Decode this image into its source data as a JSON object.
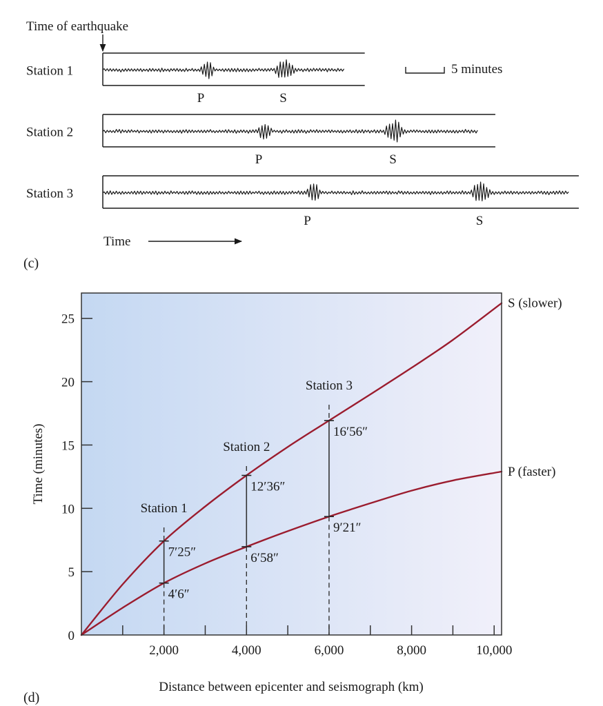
{
  "panel_c": {
    "panel_label": "(c)",
    "time_of_earthquake_label": "Time of earthquake",
    "time_axis_label": "Time",
    "scale_bar_label": "5 minutes",
    "scale_bar_minutes": 5,
    "stations": [
      {
        "name": "Station 1",
        "p_label": "P",
        "s_label": "S",
        "p_arrival_min": 12.5,
        "s_arrival_min": 22.1,
        "trace_end_min": 31.4,
        "record_length_min": 33.9
      },
      {
        "name": "Station 2",
        "p_label": "P",
        "s_label": "S",
        "p_arrival_min": 20.0,
        "s_arrival_min": 36.3,
        "trace_end_min": 48.6,
        "record_length_min": 50.8
      },
      {
        "name": "Station 3",
        "p_label": "P",
        "s_label": "S",
        "p_arrival_min": 26.3,
        "s_arrival_min": 47.5,
        "trace_end_min": 60.3,
        "record_length_min": 61.6
      }
    ]
  },
  "chart_data": {
    "type": "line",
    "panel_label": "(d)",
    "title": "",
    "xlabel": "Distance between epicenter and seismograph (km)",
    "ylabel": "Time (minutes)",
    "xlim": [
      0,
      10180
    ],
    "ylim": [
      0,
      27
    ],
    "x_ticks": [
      1000,
      2000,
      3000,
      4000,
      5000,
      6000,
      7000,
      8000,
      9000,
      10000
    ],
    "x_tick_labels": [
      {
        "value": 2000,
        "label": "2,000"
      },
      {
        "value": 4000,
        "label": "4,000"
      },
      {
        "value": 6000,
        "label": "6,000"
      },
      {
        "value": 8000,
        "label": "8,000"
      },
      {
        "value": 10000,
        "label": "10,000"
      }
    ],
    "y_ticks": [
      {
        "value": 0,
        "label": "0"
      },
      {
        "value": 5,
        "label": "5"
      },
      {
        "value": 10,
        "label": "10"
      },
      {
        "value": 15,
        "label": "15"
      },
      {
        "value": 20,
        "label": "20"
      },
      {
        "value": 25,
        "label": "25"
      }
    ],
    "grid": false,
    "series": [
      {
        "name": "S (slower)",
        "color": "#9b1c2e",
        "x": [
          0,
          1000,
          2000,
          3000,
          4000,
          5000,
          6000,
          7000,
          8000,
          9000,
          10180
        ],
        "y": [
          0,
          4.0,
          7.42,
          10.15,
          12.6,
          14.85,
          16.93,
          19.0,
          21.1,
          23.3,
          26.2
        ]
      },
      {
        "name": "P (faster)",
        "color": "#9b1c2e",
        "x": [
          0,
          1000,
          2000,
          3000,
          4000,
          5000,
          6000,
          7000,
          8000,
          9000,
          10180
        ],
        "y": [
          0,
          2.15,
          4.1,
          5.65,
          6.97,
          8.2,
          9.35,
          10.4,
          11.4,
          12.2,
          12.9
        ]
      }
    ],
    "stations": [
      {
        "name": "Station 1",
        "distance_km": 2000,
        "s_time": 7.42,
        "p_time": 4.1,
        "s_label": "7′25″",
        "p_label": "4′6″"
      },
      {
        "name": "Station 2",
        "distance_km": 4000,
        "s_time": 12.6,
        "p_time": 6.97,
        "s_label": "12′36″",
        "p_label": "6′58″"
      },
      {
        "name": "Station 3",
        "distance_km": 6000,
        "s_time": 16.93,
        "p_time": 9.35,
        "s_label": "16′56″",
        "p_label": "9′21″"
      }
    ],
    "background_gradient": [
      "#c4d8f2",
      "#f1f0fa"
    ]
  }
}
